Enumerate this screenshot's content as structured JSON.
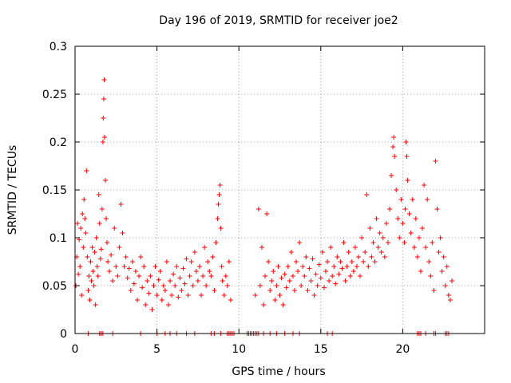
{
  "chart_data": {
    "type": "scatter",
    "title": "Day 196 of 2019, SRMTID for receiver joe2",
    "xlabel": "GPS time / hours",
    "ylabel": "SRMTID / TECUs",
    "xlim": [
      0,
      25
    ],
    "ylim": [
      0,
      0.3
    ],
    "x_ticks": [
      0,
      5,
      10,
      15,
      20
    ],
    "x_tick_labels": [
      "0",
      "5",
      "10",
      "15",
      "20"
    ],
    "y_ticks": [
      0,
      0.05,
      0.1,
      0.15,
      0.2,
      0.25,
      0.3
    ],
    "y_tick_labels": [
      "0",
      "0.05",
      "0.1",
      "0.15",
      "0.2",
      "0.25",
      "0.3"
    ],
    "grid": true,
    "marker": "+",
    "series": [
      {
        "name": "SRMTID",
        "color": "#ff0000",
        "points": [
          [
            0.05,
            0.05
          ],
          [
            0.1,
            0.08
          ],
          [
            0.15,
            0.115
          ],
          [
            0.2,
            0.062
          ],
          [
            0.25,
            0.098
          ],
          [
            0.3,
            0.07
          ],
          [
            0.35,
            0.11
          ],
          [
            0.4,
            0.04
          ],
          [
            0.45,
            0.125
          ],
          [
            0.5,
            0.09
          ],
          [
            0.55,
            0.14
          ],
          [
            0.6,
            0.12
          ],
          [
            0.65,
            0.105
          ],
          [
            0.7,
            0.17
          ],
          [
            0.75,
            0.08
          ],
          [
            0.8,
            0.045
          ],
          [
            0.85,
            0.06
          ],
          [
            0.9,
            0.035
          ],
          [
            0.95,
            0.075
          ],
          [
            1.0,
            0.055
          ],
          [
            1.05,
            0.09
          ],
          [
            1.1,
            0.065
          ],
          [
            1.15,
            0.05
          ],
          [
            1.2,
            0.085
          ],
          [
            1.25,
            0.03
          ],
          [
            1.3,
            0.1
          ],
          [
            1.35,
            0.07
          ],
          [
            1.4,
            0.06
          ],
          [
            1.45,
            0.145
          ],
          [
            1.5,
            0.115
          ],
          [
            1.55,
            0.078
          ],
          [
            1.6,
            0.088
          ],
          [
            1.65,
            0.13
          ],
          [
            1.7,
            0.2
          ],
          [
            1.72,
            0.225
          ],
          [
            1.75,
            0.245
          ],
          [
            1.78,
            0.265
          ],
          [
            1.8,
            0.205
          ],
          [
            1.85,
            0.16
          ],
          [
            1.9,
            0.12
          ],
          [
            1.95,
            0.095
          ],
          [
            2.0,
            0.075
          ],
          [
            2.1,
            0.065
          ],
          [
            2.2,
            0.082
          ],
          [
            2.3,
            0.055
          ],
          [
            2.4,
            0.11
          ],
          [
            2.5,
            0.07
          ],
          [
            2.6,
            0.06
          ],
          [
            2.7,
            0.09
          ],
          [
            2.8,
            0.135
          ],
          [
            2.9,
            0.105
          ],
          [
            3.0,
            0.07
          ],
          [
            3.1,
            0.08
          ],
          [
            3.2,
            0.058
          ],
          [
            3.3,
            0.068
          ],
          [
            3.4,
            0.045
          ],
          [
            3.5,
            0.075
          ],
          [
            3.6,
            0.052
          ],
          [
            3.7,
            0.065
          ],
          [
            3.8,
            0.035
          ],
          [
            3.9,
            0.06
          ],
          [
            4.0,
            0.08
          ],
          [
            4.1,
            0.048
          ],
          [
            4.2,
            0.07
          ],
          [
            4.3,
            0.03
          ],
          [
            4.4,
            0.055
          ],
          [
            4.5,
            0.042
          ],
          [
            4.6,
            0.06
          ],
          [
            4.7,
            0.025
          ],
          [
            4.8,
            0.05
          ],
          [
            4.9,
            0.07
          ],
          [
            5.0,
            0.04
          ],
          [
            5.1,
            0.056
          ],
          [
            5.2,
            0.065
          ],
          [
            5.3,
            0.035
          ],
          [
            5.4,
            0.05
          ],
          [
            5.5,
            0.045
          ],
          [
            5.6,
            0.075
          ],
          [
            5.7,
            0.03
          ],
          [
            5.8,
            0.055
          ],
          [
            5.9,
            0.04
          ],
          [
            6.0,
            0.062
          ],
          [
            6.1,
            0.05
          ],
          [
            6.2,
            0.07
          ],
          [
            6.3,
            0.038
          ],
          [
            6.4,
            0.058
          ],
          [
            6.5,
            0.045
          ],
          [
            6.6,
            0.068
          ],
          [
            6.7,
            0.052
          ],
          [
            6.8,
            0.078
          ],
          [
            6.9,
            0.04
          ],
          [
            7.0,
            0.06
          ],
          [
            7.1,
            0.075
          ],
          [
            7.2,
            0.05
          ],
          [
            7.3,
            0.085
          ],
          [
            7.4,
            0.065
          ],
          [
            7.5,
            0.055
          ],
          [
            7.6,
            0.07
          ],
          [
            7.7,
            0.04
          ],
          [
            7.8,
            0.06
          ],
          [
            7.9,
            0.09
          ],
          [
            8.0,
            0.05
          ],
          [
            8.1,
            0.075
          ],
          [
            8.2,
            0.065
          ],
          [
            8.3,
            0.06
          ],
          [
            8.4,
            0.08
          ],
          [
            8.5,
            0.045
          ],
          [
            8.6,
            0.095
          ],
          [
            8.7,
            0.12
          ],
          [
            8.75,
            0.135
          ],
          [
            8.8,
            0.145
          ],
          [
            8.85,
            0.155
          ],
          [
            8.9,
            0.11
          ],
          [
            8.95,
            0.07
          ],
          [
            9.0,
            0.055
          ],
          [
            9.1,
            0.04
          ],
          [
            9.2,
            0.06
          ],
          [
            9.3,
            0.05
          ],
          [
            9.4,
            0.075
          ],
          [
            9.5,
            0.035
          ],
          [
            11.0,
            0.04
          ],
          [
            11.2,
            0.13
          ],
          [
            11.3,
            0.05
          ],
          [
            11.4,
            0.09
          ],
          [
            11.5,
            0.03
          ],
          [
            11.6,
            0.06
          ],
          [
            11.7,
            0.125
          ],
          [
            11.8,
            0.075
          ],
          [
            11.9,
            0.045
          ],
          [
            12.0,
            0.055
          ],
          [
            12.1,
            0.065
          ],
          [
            12.2,
            0.035
          ],
          [
            12.3,
            0.05
          ],
          [
            12.4,
            0.07
          ],
          [
            12.5,
            0.04
          ],
          [
            12.6,
            0.058
          ],
          [
            12.7,
            0.03
          ],
          [
            12.8,
            0.062
          ],
          [
            12.9,
            0.048
          ],
          [
            13.0,
            0.07
          ],
          [
            13.1,
            0.055
          ],
          [
            13.2,
            0.085
          ],
          [
            13.3,
            0.06
          ],
          [
            13.4,
            0.045
          ],
          [
            13.5,
            0.075
          ],
          [
            13.6,
            0.065
          ],
          [
            13.7,
            0.095
          ],
          [
            13.8,
            0.05
          ],
          [
            13.9,
            0.07
          ],
          [
            14.0,
            0.06
          ],
          [
            14.1,
            0.08
          ],
          [
            14.2,
            0.045
          ],
          [
            14.3,
            0.068
          ],
          [
            14.4,
            0.055
          ],
          [
            14.5,
            0.078
          ],
          [
            14.6,
            0.04
          ],
          [
            14.7,
            0.062
          ],
          [
            14.8,
            0.05
          ],
          [
            14.9,
            0.072
          ],
          [
            15.0,
            0.058
          ],
          [
            15.1,
            0.085
          ],
          [
            15.2,
            0.048
          ],
          [
            15.3,
            0.065
          ],
          [
            15.4,
            0.075
          ],
          [
            15.5,
            0.055
          ],
          [
            15.6,
            0.09
          ],
          [
            15.7,
            0.06
          ],
          [
            15.8,
            0.07
          ],
          [
            15.9,
            0.052
          ],
          [
            16.0,
            0.08
          ],
          [
            16.1,
            0.062
          ],
          [
            16.2,
            0.075
          ],
          [
            16.3,
            0.068
          ],
          [
            16.4,
            0.095
          ],
          [
            16.5,
            0.055
          ],
          [
            16.6,
            0.07
          ],
          [
            16.7,
            0.085
          ],
          [
            16.8,
            0.06
          ],
          [
            16.9,
            0.075
          ],
          [
            17.0,
            0.065
          ],
          [
            17.1,
            0.09
          ],
          [
            17.2,
            0.07
          ],
          [
            17.3,
            0.08
          ],
          [
            17.4,
            0.06
          ],
          [
            17.5,
            0.1
          ],
          [
            17.6,
            0.075
          ],
          [
            17.7,
            0.085
          ],
          [
            17.8,
            0.145
          ],
          [
            17.9,
            0.07
          ],
          [
            18.0,
            0.11
          ],
          [
            18.1,
            0.08
          ],
          [
            18.2,
            0.095
          ],
          [
            18.3,
            0.075
          ],
          [
            18.4,
            0.12
          ],
          [
            18.5,
            0.09
          ],
          [
            18.6,
            0.105
          ],
          [
            18.7,
            0.085
          ],
          [
            18.8,
            0.1
          ],
          [
            18.9,
            0.08
          ],
          [
            19.0,
            0.115
          ],
          [
            19.1,
            0.095
          ],
          [
            19.2,
            0.13
          ],
          [
            19.3,
            0.165
          ],
          [
            19.4,
            0.195
          ],
          [
            19.45,
            0.205
          ],
          [
            19.5,
            0.185
          ],
          [
            19.6,
            0.15
          ],
          [
            19.7,
            0.12
          ],
          [
            19.8,
            0.1
          ],
          [
            19.9,
            0.14
          ],
          [
            20.0,
            0.115
          ],
          [
            20.1,
            0.095
          ],
          [
            20.15,
            0.13
          ],
          [
            20.2,
            0.2
          ],
          [
            20.25,
            0.185
          ],
          [
            20.3,
            0.16
          ],
          [
            20.4,
            0.125
          ],
          [
            20.5,
            0.105
          ],
          [
            20.6,
            0.14
          ],
          [
            20.7,
            0.09
          ],
          [
            20.8,
            0.12
          ],
          [
            20.9,
            0.08
          ],
          [
            21.0,
            0.1
          ],
          [
            21.1,
            0.065
          ],
          [
            21.2,
            0.11
          ],
          [
            21.3,
            0.155
          ],
          [
            21.4,
            0.09
          ],
          [
            21.5,
            0.14
          ],
          [
            21.6,
            0.075
          ],
          [
            21.7,
            0.06
          ],
          [
            21.8,
            0.095
          ],
          [
            21.9,
            0.045
          ],
          [
            22.0,
            0.18
          ],
          [
            22.1,
            0.13
          ],
          [
            22.2,
            0.085
          ],
          [
            22.3,
            0.1
          ],
          [
            22.4,
            0.065
          ],
          [
            22.5,
            0.08
          ],
          [
            22.6,
            0.05
          ],
          [
            22.7,
            0.07
          ],
          [
            22.8,
            0.04
          ],
          [
            22.9,
            0.035
          ],
          [
            23.0,
            0.055
          ]
        ],
        "zero_points_x": [
          0.8,
          1.5,
          1.6,
          1.7,
          2.3,
          4.0,
          5.0,
          5.5,
          5.8,
          6.2,
          6.8,
          7.3,
          8.3,
          8.5,
          8.9,
          9.3,
          9.4,
          9.5,
          9.6,
          9.7,
          10.5,
          10.6,
          10.7,
          10.8,
          10.9,
          11.0,
          11.1,
          11.2,
          11.5,
          11.9,
          12.3,
          12.8,
          13.3,
          13.7,
          15.4,
          15.7,
          20.9,
          21.0,
          21.1,
          21.4,
          21.9,
          22.0,
          22.6,
          22.7,
          22.8
        ]
      }
    ]
  }
}
